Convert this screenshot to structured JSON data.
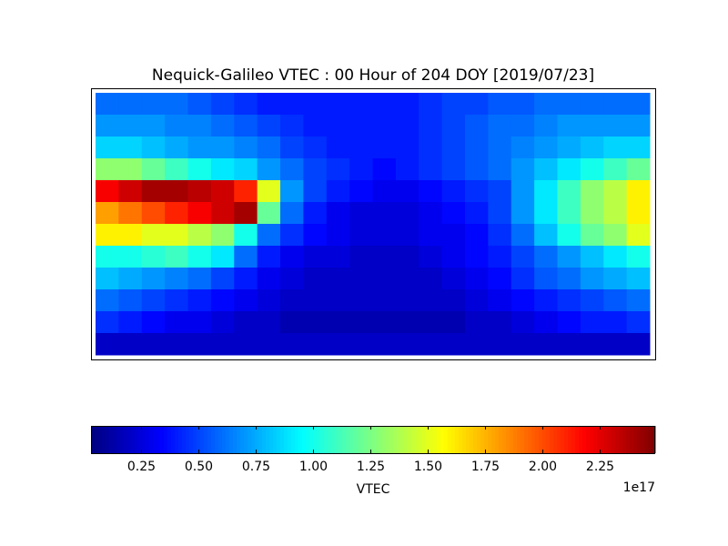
{
  "chart_data": {
    "type": "heatmap",
    "title": "Nequick-Galileo VTEC : 00 Hour of 204 DOY [2019/07/23]",
    "colormap": "jet",
    "values": [
      [
        0.6,
        0.6,
        0.6,
        0.6,
        0.55,
        0.5,
        0.45,
        0.4,
        0.4,
        0.4,
        0.4,
        0.4,
        0.4,
        0.4,
        0.45,
        0.5,
        0.5,
        0.55,
        0.55,
        0.6,
        0.6,
        0.6,
        0.6,
        0.6
      ],
      [
        0.7,
        0.7,
        0.7,
        0.65,
        0.65,
        0.6,
        0.55,
        0.5,
        0.45,
        0.4,
        0.4,
        0.4,
        0.4,
        0.4,
        0.45,
        0.5,
        0.55,
        0.6,
        0.6,
        0.65,
        0.7,
        0.7,
        0.7,
        0.7
      ],
      [
        0.85,
        0.85,
        0.8,
        0.75,
        0.7,
        0.7,
        0.65,
        0.6,
        0.5,
        0.45,
        0.4,
        0.4,
        0.4,
        0.4,
        0.45,
        0.5,
        0.55,
        0.6,
        0.65,
        0.7,
        0.75,
        0.8,
        0.85,
        0.85
      ],
      [
        1.3,
        1.3,
        1.2,
        1.1,
        1.0,
        0.9,
        0.85,
        0.7,
        0.6,
        0.5,
        0.45,
        0.4,
        0.35,
        0.4,
        0.45,
        0.5,
        0.55,
        0.6,
        0.7,
        0.8,
        0.9,
        1.0,
        1.1,
        1.2
      ],
      [
        2.2,
        2.3,
        2.4,
        2.4,
        2.35,
        2.3,
        2.1,
        1.5,
        0.7,
        0.5,
        0.4,
        0.35,
        0.3,
        0.3,
        0.35,
        0.4,
        0.45,
        0.5,
        0.7,
        0.9,
        1.1,
        1.3,
        1.4,
        1.6
      ],
      [
        1.8,
        1.9,
        2.0,
        2.1,
        2.2,
        2.3,
        2.4,
        1.2,
        0.6,
        0.4,
        0.3,
        0.25,
        0.25,
        0.25,
        0.3,
        0.35,
        0.4,
        0.5,
        0.7,
        0.9,
        1.1,
        1.3,
        1.4,
        1.6
      ],
      [
        1.6,
        1.6,
        1.5,
        1.5,
        1.4,
        1.3,
        1.0,
        0.6,
        0.45,
        0.35,
        0.3,
        0.25,
        0.25,
        0.25,
        0.3,
        0.3,
        0.35,
        0.45,
        0.6,
        0.8,
        1.0,
        1.2,
        1.3,
        1.5
      ],
      [
        1.0,
        1.0,
        1.05,
        1.1,
        1.0,
        0.9,
        0.6,
        0.4,
        0.3,
        0.25,
        0.25,
        0.2,
        0.2,
        0.2,
        0.25,
        0.3,
        0.35,
        0.4,
        0.5,
        0.6,
        0.7,
        0.8,
        0.9,
        1.0
      ],
      [
        0.8,
        0.75,
        0.7,
        0.65,
        0.6,
        0.5,
        0.4,
        0.3,
        0.25,
        0.2,
        0.2,
        0.2,
        0.2,
        0.2,
        0.2,
        0.25,
        0.3,
        0.35,
        0.45,
        0.55,
        0.6,
        0.7,
        0.75,
        0.8
      ],
      [
        0.6,
        0.55,
        0.5,
        0.45,
        0.4,
        0.35,
        0.3,
        0.25,
        0.2,
        0.2,
        0.2,
        0.2,
        0.2,
        0.2,
        0.2,
        0.2,
        0.25,
        0.3,
        0.35,
        0.4,
        0.45,
        0.5,
        0.55,
        0.6
      ],
      [
        0.45,
        0.4,
        0.35,
        0.3,
        0.3,
        0.25,
        0.2,
        0.2,
        0.15,
        0.15,
        0.15,
        0.15,
        0.15,
        0.15,
        0.15,
        0.15,
        0.2,
        0.2,
        0.25,
        0.3,
        0.35,
        0.4,
        0.4,
        0.45
      ],
      [
        0.2,
        0.2,
        0.2,
        0.2,
        0.2,
        0.2,
        0.2,
        0.2,
        0.2,
        0.2,
        0.2,
        0.2,
        0.2,
        0.2,
        0.2,
        0.2,
        0.2,
        0.2,
        0.2,
        0.2,
        0.2,
        0.2,
        0.2,
        0.2
      ]
    ],
    "colorbar": {
      "label": "VTEC",
      "offset_label": "1e17",
      "clim": [
        0.03,
        2.49
      ],
      "ticks": [
        0.25,
        {
          "value": 0.5,
          "label": "0.50"
        },
        0.75,
        {
          "value": 1,
          "label": "1.00"
        },
        1.25,
        {
          "value": 1.5,
          "label": "1.50"
        },
        1.75,
        {
          "value": 2,
          "label": "2.00"
        },
        2.25
      ]
    }
  }
}
